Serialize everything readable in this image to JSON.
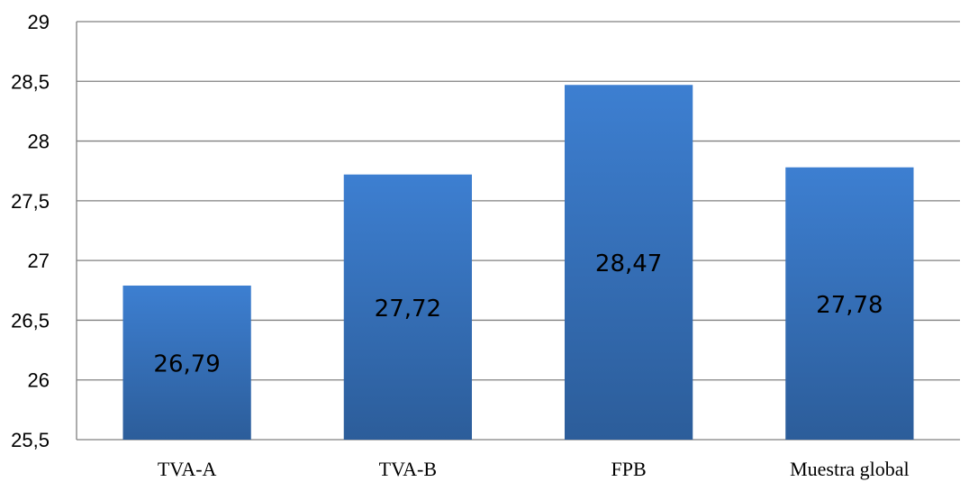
{
  "chart_data": {
    "type": "bar",
    "title": "",
    "xlabel": "",
    "ylabel": "",
    "categories": [
      "TVA-A",
      "TVA-B",
      "FPB",
      "Muestra global"
    ],
    "values": [
      26.79,
      27.72,
      28.47,
      27.78
    ],
    "data_labels": [
      "26,79",
      "27,72",
      "28,47",
      "27,78"
    ],
    "ylim": [
      25.5,
      29
    ],
    "yticks": [
      25.5,
      26,
      26.5,
      27,
      27.5,
      28,
      28.5,
      29
    ],
    "ytick_labels": [
      "25,5",
      "26",
      "26,5",
      "27",
      "27,5",
      "28",
      "28,5",
      "29"
    ],
    "grid": true,
    "legend": "none",
    "colors": {
      "bar_top": "#3d7fd1",
      "bar_bottom": "#2c5d9a",
      "grid": "#808080"
    }
  }
}
